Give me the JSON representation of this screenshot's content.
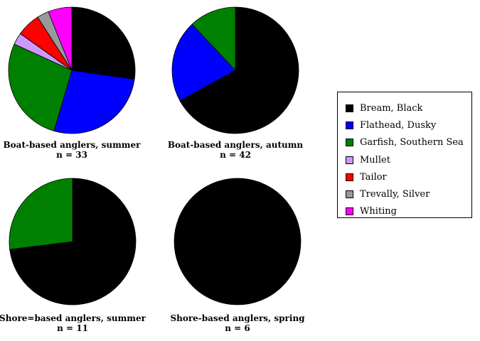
{
  "colors": {
    "Bream, Black": "#000000",
    "Flathead, Dusky": "#0000ff",
    "Garfish, Southern Sea": "#008000",
    "Mullet": "#cc99ff",
    "Tailor": "#ff0000",
    "Trevally, Silver": "#999999",
    "Whiting": "#ff00ff"
  },
  "legend": [
    "Bream, Black",
    "Flathead, Dusky",
    "Garfish, Southern Sea",
    "Mullet",
    "Tailor",
    "Trevally, Silver",
    "Whiting"
  ],
  "chart_data": [
    {
      "type": "pie",
      "title": "Boat-based anglers, summer",
      "subtitle": "n = 33",
      "categories": [
        "Bream, Black",
        "Flathead, Dusky",
        "Garfish, Southern Sea",
        "Mullet",
        "Tailor",
        "Trevally, Silver",
        "Whiting"
      ],
      "values": [
        27,
        27,
        27,
        3,
        6,
        3,
        6
      ]
    },
    {
      "type": "pie",
      "title": "Boat-based anglers, autumn",
      "subtitle": "n = 42",
      "categories": [
        "Bream, Black",
        "Flathead, Dusky",
        "Garfish, Southern Sea"
      ],
      "values": [
        67,
        21,
        12
      ]
    },
    {
      "type": "pie",
      "title": "Shore=based anglers, summer",
      "subtitle": "n = 11",
      "categories": [
        "Bream, Black",
        "Garfish, Southern Sea"
      ],
      "values": [
        73,
        27
      ]
    },
    {
      "type": "pie",
      "title": "Shore-based anglers, spring",
      "subtitle": "n = 6",
      "categories": [
        "Bream, Black"
      ],
      "values": [
        100
      ]
    }
  ]
}
